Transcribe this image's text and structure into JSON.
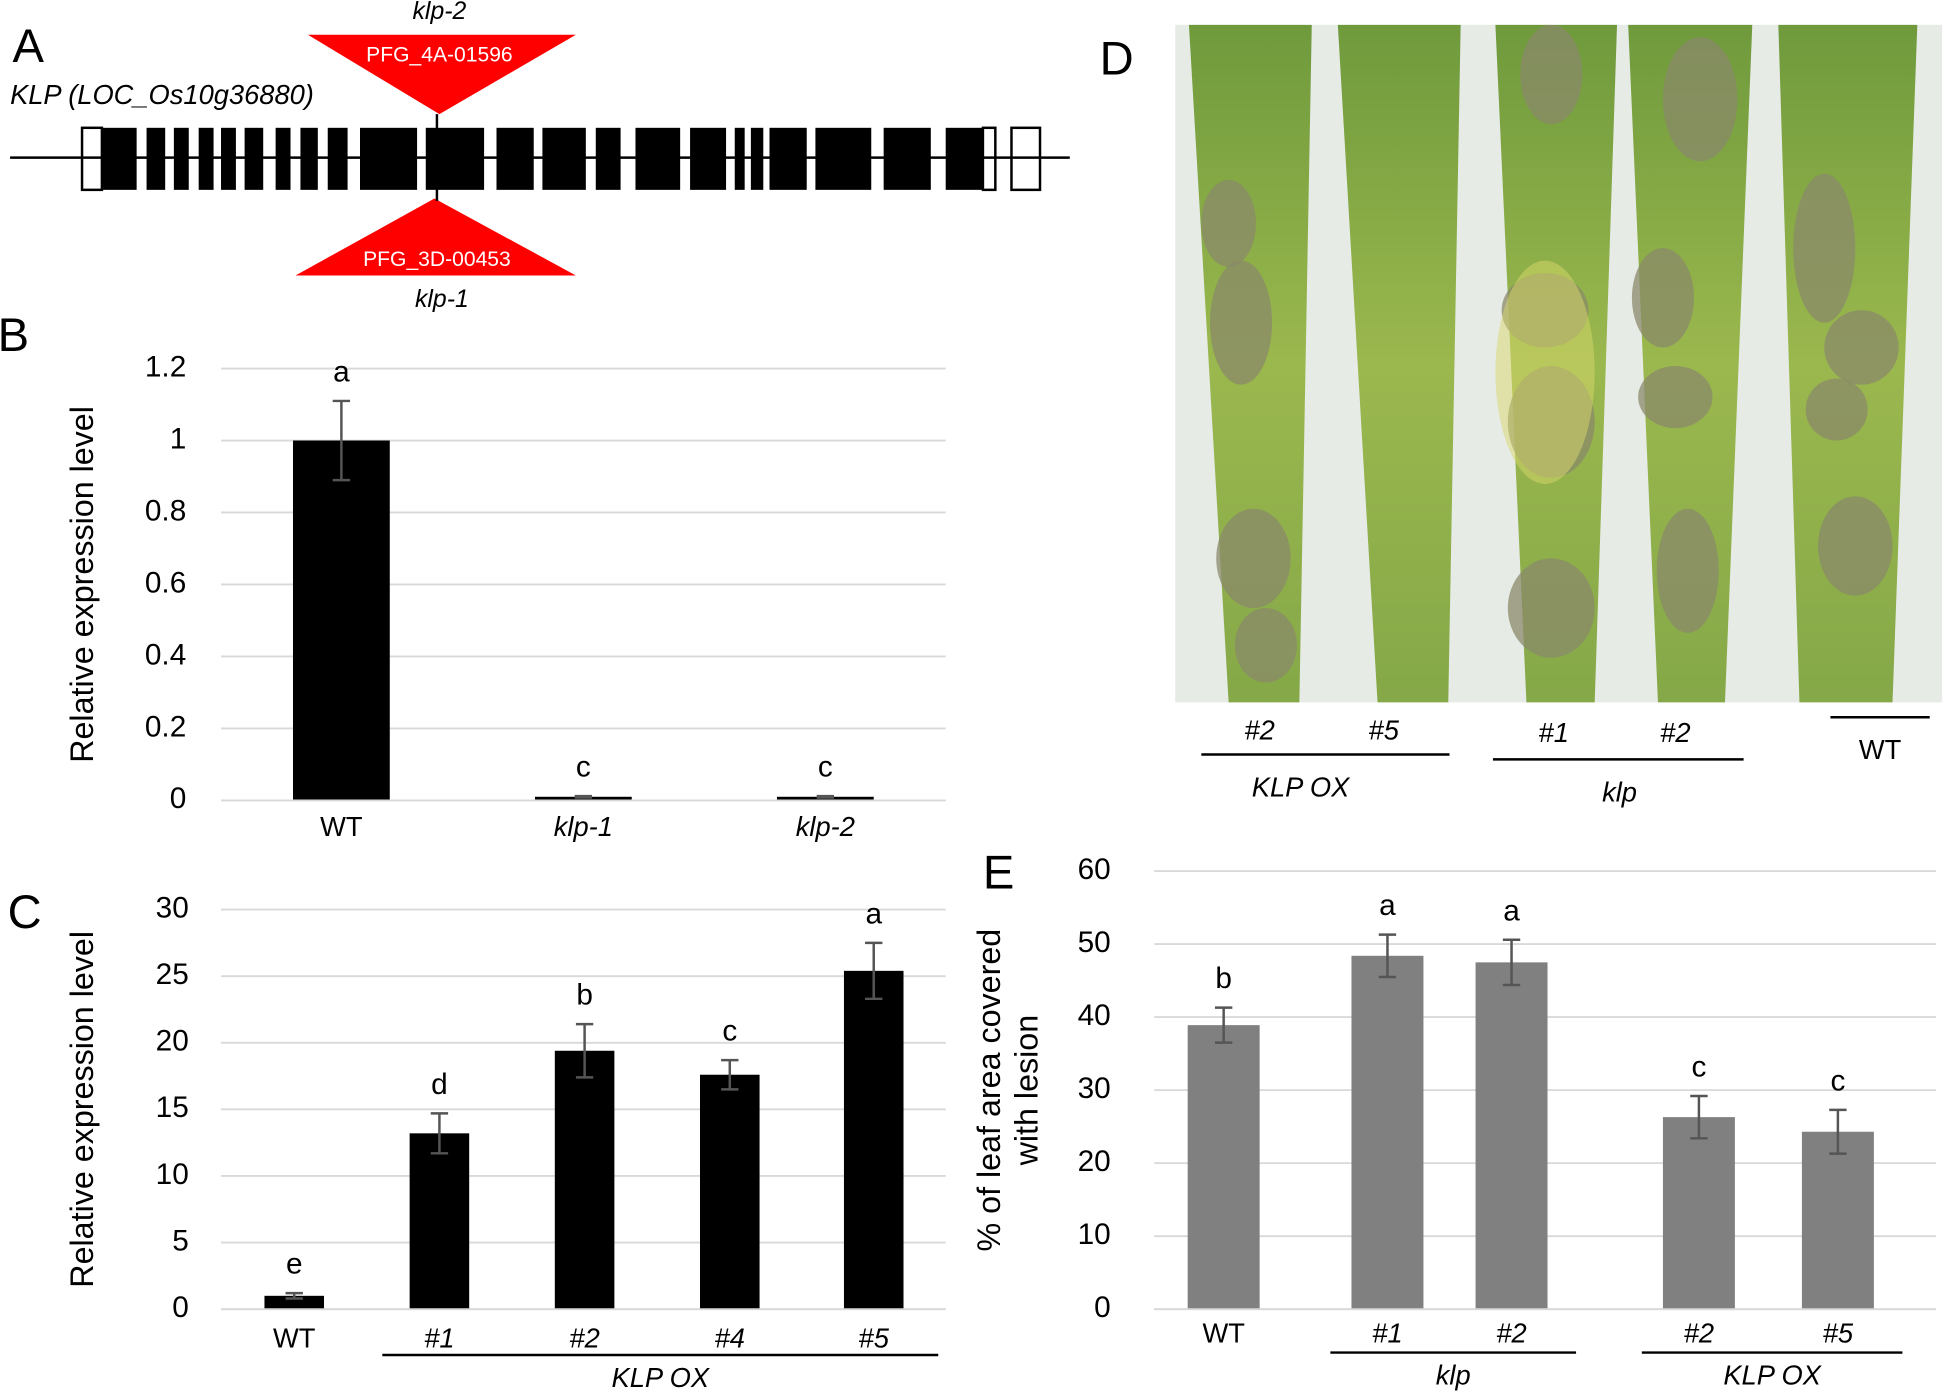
{
  "panel_labels": [
    "A",
    "B",
    "C",
    "D",
    "E"
  ],
  "gene_diagram": {
    "gene": "KLP (LOC_Os10g36880)",
    "insertions": [
      {
        "line": "PFG_4A-01596",
        "allele": "klp-2"
      },
      {
        "line": "PFG_3D-00453",
        "allele": "klp-1"
      }
    ]
  },
  "photo": {
    "groups": [
      {
        "label": "KLP OX",
        "lines": [
          "#2",
          "#5"
        ]
      },
      {
        "label": "klp",
        "lines": [
          "#1",
          "#2"
        ]
      }
    ],
    "control": "WT"
  },
  "chart_data": [
    {
      "type": "bar",
      "ylabel": [
        "Relative expression level"
      ],
      "categories": [
        "WT",
        "klp-1",
        "klp-2"
      ],
      "values": [
        1,
        0.01,
        0.01
      ],
      "errors": [
        0.11,
        0.002,
        0.002
      ],
      "annotations": [
        "a",
        "c",
        "c"
      ],
      "color": "#000000",
      "ylim": [
        0,
        1.2
      ],
      "yticks": [
        0,
        0.2,
        0.4,
        0.6,
        0.8,
        1,
        1.2
      ],
      "grid": true
    },
    {
      "type": "bar",
      "ylabel": [
        "Relative expression level"
      ],
      "categories": [
        "WT",
        "#1",
        "#2",
        "#4",
        "#5"
      ],
      "groups": [
        null,
        "KLP OX",
        "KLP OX",
        "KLP OX",
        "KLP OX"
      ],
      "values": [
        1.0,
        13.2,
        19.4,
        17.6,
        25.4
      ],
      "errors": [
        0.2,
        1.5,
        2.0,
        1.1,
        2.1
      ],
      "annotations": [
        "e",
        "d",
        "b",
        "c",
        "a"
      ],
      "color": "#000000",
      "ylim": [
        0,
        30
      ],
      "yticks": [
        0,
        5,
        10,
        15,
        20,
        25,
        30
      ],
      "grid": true
    },
    {
      "type": "bar",
      "ylabel": [
        "% of leaf area covered",
        "with lesion"
      ],
      "categories": [
        "WT",
        "#1",
        "#2",
        "#2",
        "#5"
      ],
      "groups": [
        null,
        "klp",
        "klp",
        "KLP OX",
        "KLP OX"
      ],
      "values": [
        38.9,
        48.4,
        47.5,
        26.3,
        24.3
      ],
      "errors": [
        2.4,
        2.9,
        3.1,
        2.9,
        3.0
      ],
      "annotations": [
        "b",
        "a",
        "a",
        "c",
        "c"
      ],
      "color": "#808080",
      "ylim": [
        0,
        60
      ],
      "yticks": [
        0,
        10,
        20,
        30,
        40,
        50,
        60
      ],
      "grid": true
    }
  ]
}
